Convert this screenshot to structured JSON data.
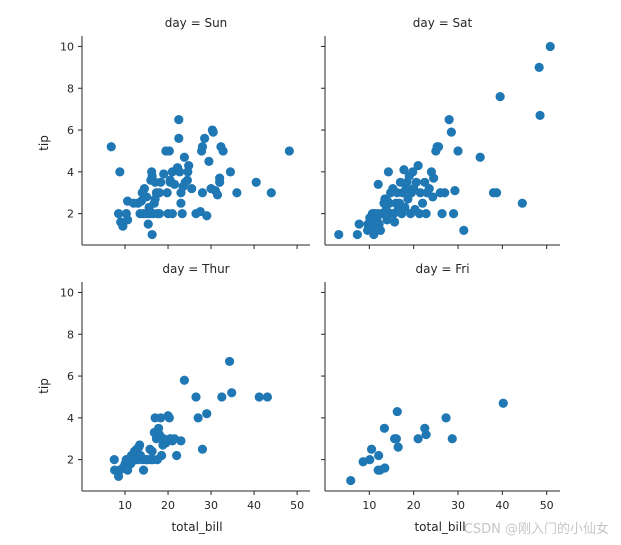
{
  "chart_data": {
    "type": "scatter",
    "figure": "facet-grid",
    "marker_color": "#1f77b4",
    "xlim": [
      0,
      53
    ],
    "ylim": [
      0.5,
      10.5
    ],
    "x_ticks": [
      10,
      20,
      30,
      40,
      50
    ],
    "y_ticks": [
      2,
      4,
      6,
      8,
      10
    ],
    "xlabel": "total_bill",
    "ylabel": "tip",
    "grid": false,
    "facets": [
      {
        "title": "day = Sun",
        "points": [
          [
            6.8,
            5.2
          ],
          [
            8.8,
            4.0
          ],
          [
            8.5,
            2.0
          ],
          [
            9.0,
            1.6
          ],
          [
            9.5,
            1.4
          ],
          [
            10.3,
            2.0
          ],
          [
            10.6,
            1.7
          ],
          [
            10.6,
            2.6
          ],
          [
            12.0,
            2.5
          ],
          [
            13.0,
            2.5
          ],
          [
            13.5,
            2.0
          ],
          [
            13.8,
            2.6
          ],
          [
            14.0,
            3.0
          ],
          [
            14.3,
            2.0
          ],
          [
            14.5,
            3.2
          ],
          [
            15.0,
            2.0
          ],
          [
            15.0,
            2.8
          ],
          [
            15.4,
            1.5
          ],
          [
            15.6,
            2.3
          ],
          [
            15.8,
            2.0
          ],
          [
            16.0,
            3.6
          ],
          [
            16.2,
            4.0
          ],
          [
            16.3,
            3.8
          ],
          [
            16.3,
            1.0
          ],
          [
            16.5,
            2.0
          ],
          [
            16.8,
            2.5
          ],
          [
            17.0,
            2.7
          ],
          [
            17.0,
            3.5
          ],
          [
            17.3,
            3.0
          ],
          [
            17.5,
            2.0
          ],
          [
            18.0,
            3.0
          ],
          [
            18.0,
            2.0
          ],
          [
            18.3,
            3.5
          ],
          [
            19.0,
            3.9
          ],
          [
            19.5,
            5.0
          ],
          [
            19.8,
            3.0
          ],
          [
            20.0,
            2.0
          ],
          [
            20.3,
            5.0
          ],
          [
            20.5,
            3.5
          ],
          [
            20.5,
            3.6
          ],
          [
            21.0,
            4.0
          ],
          [
            21.0,
            2.0
          ],
          [
            21.5,
            3.4
          ],
          [
            22.2,
            4.2
          ],
          [
            22.5,
            6.5
          ],
          [
            22.5,
            5.6
          ],
          [
            22.7,
            4.0
          ],
          [
            23.0,
            2.5
          ],
          [
            23.0,
            3.0
          ],
          [
            23.3,
            2.0
          ],
          [
            23.5,
            3.3
          ],
          [
            23.8,
            4.7
          ],
          [
            24.0,
            3.5
          ],
          [
            24.5,
            3.6
          ],
          [
            24.8,
            4.3
          ],
          [
            24.6,
            4.0
          ],
          [
            25.5,
            3.2
          ],
          [
            26.5,
            2.0
          ],
          [
            27.5,
            2.1
          ],
          [
            28.0,
            3.0
          ],
          [
            27.8,
            5.0
          ],
          [
            28.0,
            5.2
          ],
          [
            28.5,
            5.6
          ],
          [
            29.0,
            1.9
          ],
          [
            29.5,
            4.5
          ],
          [
            30.0,
            3.2
          ],
          [
            30.3,
            6.0
          ],
          [
            30.5,
            5.9
          ],
          [
            31.0,
            3.1
          ],
          [
            31.5,
            2.9
          ],
          [
            32.0,
            3.7
          ],
          [
            32.0,
            3.5
          ],
          [
            32.3,
            5.2
          ],
          [
            32.8,
            5.0
          ],
          [
            34.5,
            4.0
          ],
          [
            36.0,
            3.0
          ],
          [
            40.5,
            3.5
          ],
          [
            44.0,
            3.0
          ],
          [
            48.2,
            5.0
          ]
        ]
      },
      {
        "title": "day = Sat",
        "points": [
          [
            3.1,
            1.0
          ],
          [
            7.3,
            1.0
          ],
          [
            7.7,
            1.5
          ],
          [
            9.6,
            1.2
          ],
          [
            9.7,
            1.5
          ],
          [
            10.0,
            1.3
          ],
          [
            10.1,
            1.8
          ],
          [
            10.3,
            1.7
          ],
          [
            10.5,
            1.5
          ],
          [
            10.7,
            2.0
          ],
          [
            11.0,
            1.0
          ],
          [
            11.2,
            2.0
          ],
          [
            11.5,
            1.4
          ],
          [
            11.7,
            1.7
          ],
          [
            11.9,
            2.0
          ],
          [
            12.0,
            3.4
          ],
          [
            12.2,
            1.5
          ],
          [
            12.5,
            1.2
          ],
          [
            12.7,
            2.0
          ],
          [
            13.0,
            2.0
          ],
          [
            13.3,
            2.5
          ],
          [
            13.5,
            2.7
          ],
          [
            13.8,
            2.2
          ],
          [
            14.0,
            1.7
          ],
          [
            14.1,
            2.6
          ],
          [
            14.3,
            4.0
          ],
          [
            14.5,
            2.5
          ],
          [
            14.8,
            3.0
          ],
          [
            15.0,
            2.0
          ],
          [
            15.3,
            3.2
          ],
          [
            15.5,
            2.0
          ],
          [
            15.7,
            1.6
          ],
          [
            16.0,
            2.5
          ],
          [
            16.3,
            3.0
          ],
          [
            16.5,
            2.2
          ],
          [
            16.8,
            2.5
          ],
          [
            17.0,
            3.5
          ],
          [
            17.3,
            2.0
          ],
          [
            17.5,
            3.0
          ],
          [
            17.8,
            4.1
          ],
          [
            18.0,
            2.3
          ],
          [
            18.3,
            3.2
          ],
          [
            18.5,
            3.5
          ],
          [
            18.7,
            2.7
          ],
          [
            19.0,
            3.8
          ],
          [
            19.3,
            2.0
          ],
          [
            19.5,
            3.0
          ],
          [
            19.8,
            4.0
          ],
          [
            20.0,
            3.2
          ],
          [
            20.3,
            2.2
          ],
          [
            20.6,
            3.5
          ],
          [
            21.0,
            4.3
          ],
          [
            21.3,
            2.0
          ],
          [
            21.5,
            3.0
          ],
          [
            22.0,
            2.5
          ],
          [
            22.5,
            3.5
          ],
          [
            22.8,
            2.0
          ],
          [
            23.0,
            3.0
          ],
          [
            23.5,
            3.2
          ],
          [
            24.0,
            4.0
          ],
          [
            24.3,
            2.8
          ],
          [
            24.5,
            3.7
          ],
          [
            25.0,
            5.0
          ],
          [
            25.3,
            5.2
          ],
          [
            25.6,
            5.2
          ],
          [
            26.0,
            3.0
          ],
          [
            26.4,
            2.0
          ],
          [
            27.0,
            3.0
          ],
          [
            28.0,
            6.5
          ],
          [
            28.5,
            5.9
          ],
          [
            29.0,
            2.0
          ],
          [
            29.3,
            3.1
          ],
          [
            30.0,
            5.0
          ],
          [
            31.3,
            1.2
          ],
          [
            35.0,
            4.7
          ],
          [
            38.0,
            3.0
          ],
          [
            38.7,
            3.0
          ],
          [
            39.5,
            7.6
          ],
          [
            44.5,
            2.5
          ],
          [
            48.3,
            9.0
          ],
          [
            48.5,
            6.7
          ],
          [
            50.8,
            10.0
          ]
        ]
      },
      {
        "title": "day = Thur",
        "points": [
          [
            7.5,
            2.0
          ],
          [
            7.6,
            1.5
          ],
          [
            8.5,
            1.2
          ],
          [
            8.8,
            1.5
          ],
          [
            9.5,
            1.6
          ],
          [
            10.0,
            1.8
          ],
          [
            10.2,
            1.7
          ],
          [
            10.3,
            2.0
          ],
          [
            10.6,
            1.5
          ],
          [
            11.0,
            2.0
          ],
          [
            11.3,
            1.8
          ],
          [
            11.5,
            2.2
          ],
          [
            11.6,
            1.9
          ],
          [
            12.0,
            2.0
          ],
          [
            12.2,
            2.4
          ],
          [
            12.4,
            2.0
          ],
          [
            12.7,
            2.5
          ],
          [
            13.0,
            2.0
          ],
          [
            13.2,
            2.6
          ],
          [
            13.4,
            2.7
          ],
          [
            13.6,
            2.2
          ],
          [
            14.0,
            2.0
          ],
          [
            14.3,
            1.5
          ],
          [
            14.8,
            2.0
          ],
          [
            15.0,
            2.0
          ],
          [
            15.3,
            2.0
          ],
          [
            15.8,
            2.5
          ],
          [
            16.0,
            2.0
          ],
          [
            16.3,
            2.4
          ],
          [
            16.5,
            2.0
          ],
          [
            16.8,
            3.3
          ],
          [
            17.0,
            4.0
          ],
          [
            17.3,
            3.0
          ],
          [
            17.5,
            2.0
          ],
          [
            17.8,
            3.5
          ],
          [
            18.0,
            3.2
          ],
          [
            18.3,
            4.0
          ],
          [
            18.5,
            2.2
          ],
          [
            18.8,
            2.7
          ],
          [
            19.0,
            3.0
          ],
          [
            19.5,
            2.8
          ],
          [
            20.0,
            4.1
          ],
          [
            20.3,
            4.0
          ],
          [
            20.5,
            3.0
          ],
          [
            21.0,
            2.9
          ],
          [
            21.5,
            3.0
          ],
          [
            22.0,
            2.2
          ],
          [
            23.0,
            2.9
          ],
          [
            23.8,
            5.8
          ],
          [
            26.5,
            5.0
          ],
          [
            27.0,
            4.0
          ],
          [
            28.0,
            2.5
          ],
          [
            29.0,
            4.2
          ],
          [
            32.5,
            5.0
          ],
          [
            34.3,
            6.7
          ],
          [
            34.8,
            5.2
          ],
          [
            41.2,
            5.0
          ],
          [
            43.1,
            5.0
          ]
        ]
      },
      {
        "title": "day = Fri",
        "points": [
          [
            5.8,
            1.0
          ],
          [
            8.6,
            1.9
          ],
          [
            10.1,
            2.0
          ],
          [
            10.5,
            2.5
          ],
          [
            12.0,
            1.5
          ],
          [
            12.1,
            2.2
          ],
          [
            12.4,
            1.5
          ],
          [
            13.4,
            3.5
          ],
          [
            13.5,
            1.6
          ],
          [
            15.7,
            3.0
          ],
          [
            16.1,
            3.0
          ],
          [
            16.3,
            4.3
          ],
          [
            16.5,
            2.6
          ],
          [
            21.0,
            3.0
          ],
          [
            22.5,
            3.5
          ],
          [
            22.8,
            3.2
          ],
          [
            27.3,
            4.0
          ],
          [
            28.7,
            3.0
          ],
          [
            40.2,
            4.7
          ]
        ]
      }
    ]
  },
  "watermark": "CSDN @刚入门的小仙女"
}
